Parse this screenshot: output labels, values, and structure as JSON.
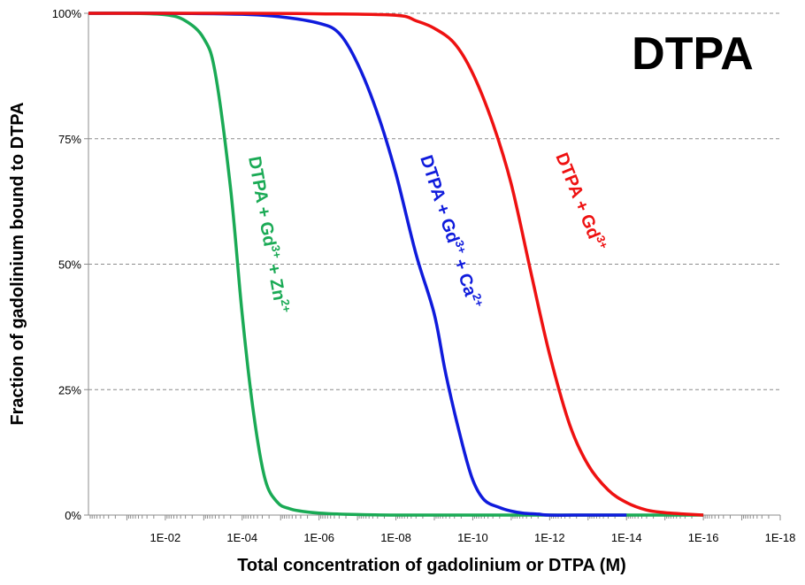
{
  "chart_data": {
    "type": "line",
    "title": "DTPA",
    "xlabel": "Total concentration of gadolinium or DTPA (M)",
    "ylabel": "Fraction of gadolinium bound to DTPA",
    "x_scale": "log",
    "x_reversed": true,
    "xlim": [
      1,
      1e-18
    ],
    "ylim": [
      0,
      1
    ],
    "x_ticks": [
      "1E-02",
      "1E-04",
      "1E-06",
      "1E-08",
      "1E-10",
      "1E-12",
      "1E-14",
      "1E-16",
      "1E-18"
    ],
    "y_ticks": [
      "0%",
      "25%",
      "50%",
      "75%",
      "100%"
    ],
    "y_tick_values": [
      0,
      0.25,
      0.5,
      0.75,
      1
    ],
    "grid": "horizontal-dashed",
    "series": [
      {
        "name": "DTPA + Gd³⁺ + Zn²⁺",
        "label_parts": {
          "base": "DTPA + Gd",
          "sup1": "3+",
          "mid": " + Zn",
          "sup2": "2+"
        },
        "color": "#1aaa55",
        "x": [
          1,
          0.1,
          0.01,
          0.003,
          0.001,
          0.0005,
          0.0002,
          0.0001,
          5e-05,
          2.5e-05,
          1.2e-05,
          6e-06,
          3e-06,
          1e-06,
          1e-07,
          1e-08,
          1e-10,
          1e-12,
          1e-14,
          1e-16
        ],
        "y": [
          1,
          1,
          0.997,
          0.985,
          0.95,
          0.88,
          0.65,
          0.4,
          0.2,
          0.07,
          0.025,
          0.013,
          0.008,
          0.004,
          0.001,
          0,
          0,
          0,
          0,
          0
        ]
      },
      {
        "name": "DTPA + Gd³⁺ + Ca²⁺",
        "label_parts": {
          "base": "DTPA + Gd",
          "sup1": "3+",
          "mid": " + Ca",
          "sup2": "2+"
        },
        "color": "#0f1bdc",
        "x": [
          1,
          0.01,
          0.0001,
          1e-05,
          1e-06,
          3e-07,
          1e-07,
          3e-08,
          1e-08,
          3e-09,
          1e-09,
          5e-10,
          2e-10,
          1e-10,
          5e-11,
          2e-11,
          1e-11,
          5e-12,
          2e-12,
          1e-12,
          1e-13,
          1e-14
        ],
        "y": [
          1,
          1,
          0.998,
          0.993,
          0.98,
          0.96,
          0.9,
          0.8,
          0.68,
          0.52,
          0.4,
          0.28,
          0.15,
          0.07,
          0.03,
          0.015,
          0.008,
          0.004,
          0.002,
          0,
          0,
          0
        ]
      },
      {
        "name": "DTPA + Gd³⁺",
        "label_parts": {
          "base": "DTPA + Gd",
          "sup1": "3+",
          "mid": "",
          "sup2": ""
        },
        "color": "#ee1111",
        "x": [
          1,
          0.0001,
          1e-06,
          1e-08,
          3e-09,
          1e-09,
          3e-10,
          1e-10,
          3e-11,
          1e-11,
          3e-12,
          1e-12,
          3e-13,
          1e-13,
          3e-14,
          1e-14,
          3e-15,
          1e-15,
          3e-16,
          1e-16
        ],
        "y": [
          1,
          1,
          0.999,
          0.996,
          0.985,
          0.97,
          0.94,
          0.88,
          0.78,
          0.66,
          0.48,
          0.32,
          0.18,
          0.1,
          0.05,
          0.025,
          0.01,
          0.005,
          0.002,
          0
        ]
      }
    ]
  }
}
